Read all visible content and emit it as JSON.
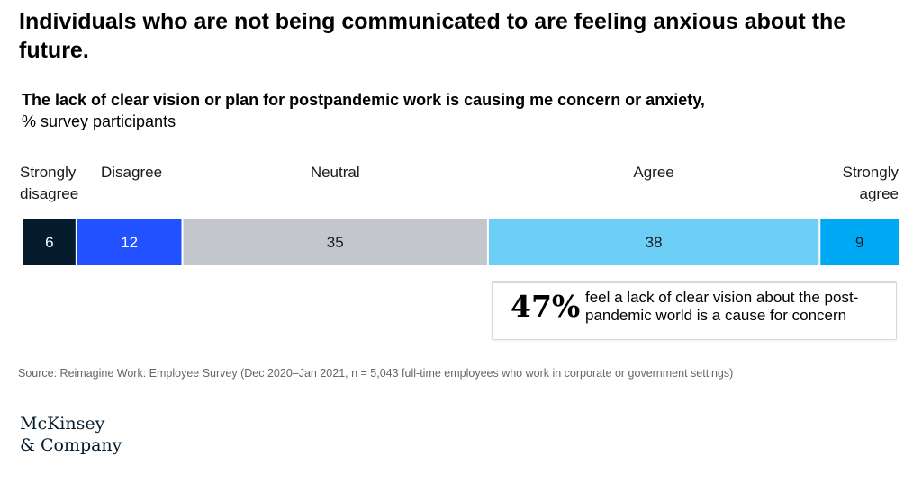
{
  "headline": "Individuals who are not being communicated to are feeling anxious about the future.",
  "chart_data": {
    "type": "bar",
    "orientation": "horizontal-stacked",
    "title": "The lack of clear vision or plan for postpandemic work is causing me concern or anxiety,",
    "subtitle": "% survey participants",
    "categories": [
      [
        "Strongly",
        "disagree"
      ],
      [
        "Disagree"
      ],
      [
        "Neutral"
      ],
      [
        "Agree"
      ],
      [
        "Strongly",
        "agree"
      ]
    ],
    "values": [
      6,
      12,
      35,
      38,
      9
    ],
    "colors": [
      "#051c2c",
      "#2251ff",
      "#c3c7cb",
      "#6ecff6",
      "#00a9f4"
    ],
    "label_colors": [
      "#ffffff",
      "#ffffff",
      "#1a1a1a",
      "#1a1a1a",
      "#1a1a1a"
    ],
    "category_align": [
      "left",
      "left",
      "center",
      "center",
      "right"
    ]
  },
  "callout": {
    "stat": "47%",
    "text": "feel a lack of clear vision about the post-pandemic world is a cause for concern"
  },
  "source": "Source: Reimagine Work: Employee Survey (Dec 2020–Jan 2021, n = 5,043 full-time employees who work in corporate or government settings)",
  "logo": {
    "line1": "McKinsey",
    "line2": "& Company"
  }
}
